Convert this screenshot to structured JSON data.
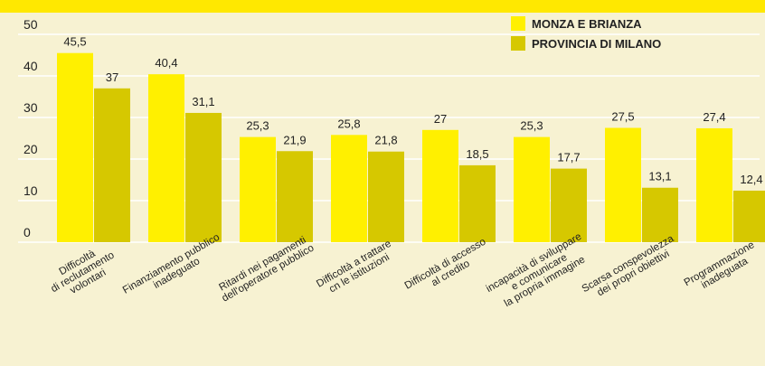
{
  "chart_data": {
    "type": "bar",
    "categories": [
      [
        "Difficoltà",
        "di reclutamento",
        "volontari"
      ],
      [
        "Finanziamento pubblico",
        "inadeguato"
      ],
      [
        "Ritardi nei pagamenti",
        "dell'operatore pubblico"
      ],
      [
        "Difficoltà a trattare",
        "cn le istituzioni"
      ],
      [
        "Difficoltà di accesso",
        "al credito"
      ],
      [
        "incapacità di sviluppare",
        "e comunicare",
        "la propria immagine"
      ],
      [
        "Scarsa conspevolezza",
        "dei propri obiettivi"
      ],
      [
        "Programmazione",
        "inadeguata"
      ]
    ],
    "series": [
      {
        "name": "MONZA E BRIANZA",
        "color": "#fff000",
        "values": [
          45.5,
          40.4,
          25.3,
          25.8,
          27,
          25.3,
          27.5,
          27.4
        ],
        "value_labels": [
          "45,5",
          "40,4",
          "25,3",
          "25,8",
          "27",
          "25,3",
          "27,5",
          "27,4"
        ]
      },
      {
        "name": "PROVINCIA DI MILANO",
        "color": "#d6c800",
        "values": [
          37,
          31.1,
          21.9,
          21.8,
          18.5,
          17.7,
          13.1,
          12.4
        ],
        "value_labels": [
          "37",
          "31,1",
          "21,9",
          "21,8",
          "18,5",
          "17,7",
          "13,1",
          "12,4"
        ]
      }
    ],
    "ylim": [
      0,
      50
    ],
    "yticks": [
      0,
      10,
      20,
      30,
      40,
      50
    ],
    "grid": true
  }
}
